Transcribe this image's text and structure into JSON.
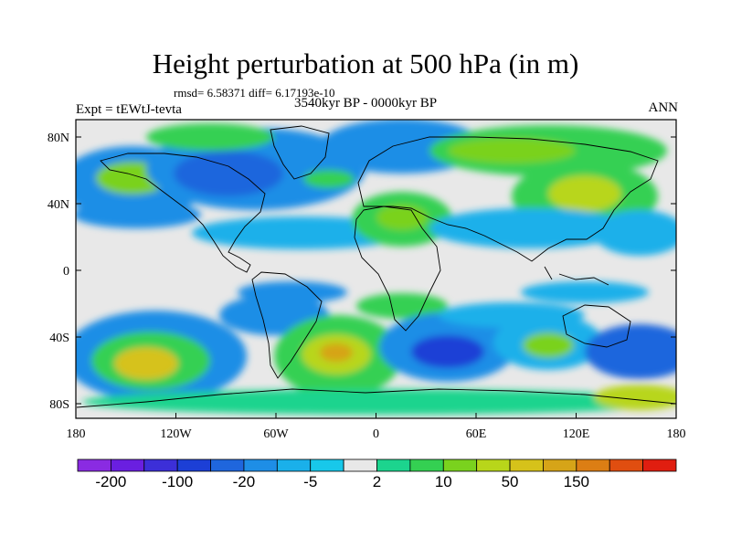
{
  "title": "Height perturbation at 500 hPa (in m)",
  "stats": "rmsd= 6.58371 diff= 6.17193e-10",
  "expt": "Expt = tEWtJ-tevta",
  "period": "3540kyr BP - 0000kyr BP",
  "season": "ANN",
  "map": {
    "lat_ticks": [
      "80N",
      "40N",
      "0",
      "40S",
      "80S"
    ],
    "lon_ticks": [
      "180",
      "120W",
      "60W",
      "0",
      "60E",
      "120E",
      "180"
    ]
  },
  "colorbar": {
    "colors": [
      "#8a2be2",
      "#6a1fe0",
      "#3c2fd8",
      "#1c3fd6",
      "#1f66dd",
      "#1e8ee6",
      "#1ab0ea",
      "#18c8ea",
      "#e8e8e8",
      "#1cd48e",
      "#34d052",
      "#7ad21e",
      "#b8d61a",
      "#d6c21a",
      "#d6a418",
      "#dc7e14",
      "#e04e10",
      "#e01e10"
    ],
    "labels": [
      "-200",
      "-100",
      "-20",
      "-5",
      "2",
      "10",
      "50",
      "150"
    ]
  }
}
